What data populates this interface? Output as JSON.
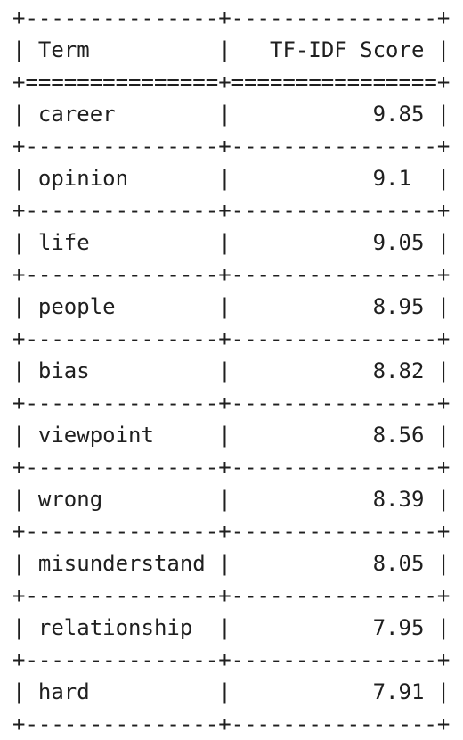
{
  "table": {
    "headers": [
      "Term",
      "TF-IDF Score"
    ],
    "rows": [
      [
        "career",
        "9.85"
      ],
      [
        "opinion",
        "9.1"
      ],
      [
        "life",
        "9.05"
      ],
      [
        "people",
        "8.95"
      ],
      [
        "bias",
        "8.82"
      ],
      [
        "viewpoint",
        "8.56"
      ],
      [
        "wrong",
        "8.39"
      ],
      [
        "misunderstand",
        "8.05"
      ],
      [
        "relationship",
        "7.95"
      ],
      [
        "hard",
        "7.91"
      ]
    ]
  }
}
